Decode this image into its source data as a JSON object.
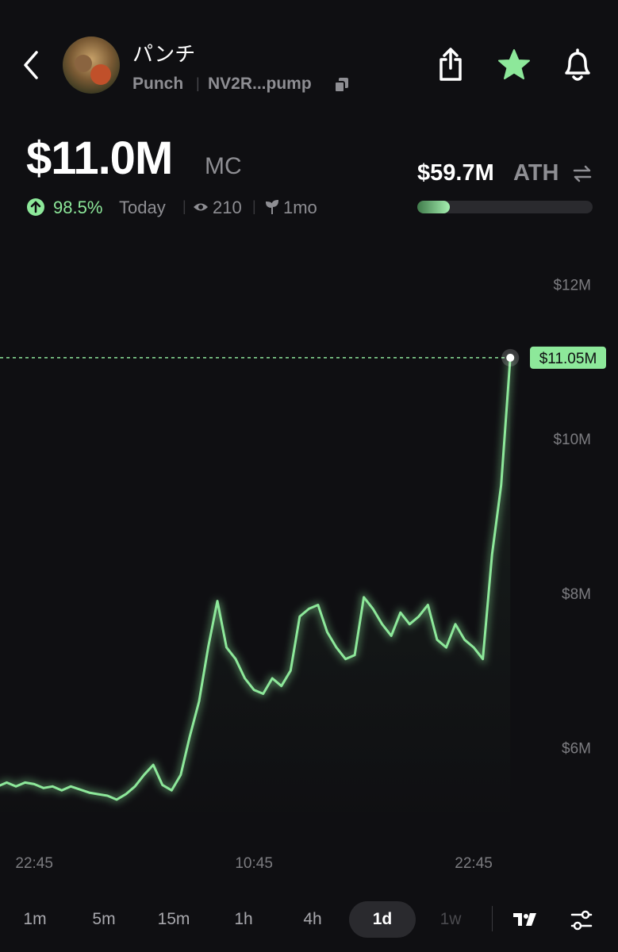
{
  "header": {
    "title": "パンチ",
    "symbol": "Punch",
    "address": "NV2R...pump"
  },
  "market": {
    "cap": "$11.0M",
    "cap_label": "MC",
    "change": "98.5%",
    "change_label": "Today",
    "views": "210",
    "age": "1mo",
    "ath": "$59.7M",
    "ath_label": "ATH"
  },
  "chart_data": {
    "type": "line",
    "color": "#8de89a",
    "categories": [
      null,
      null,
      null,
      null,
      "22:45",
      null,
      null,
      null,
      null,
      null,
      null,
      null,
      null,
      null,
      null,
      null,
      null,
      null,
      null,
      null,
      null,
      null,
      null,
      null,
      null,
      null,
      null,
      null,
      "10:45",
      null,
      null,
      null,
      null,
      null,
      null,
      null,
      null,
      null,
      null,
      null,
      null,
      null,
      null,
      null,
      null,
      null,
      null,
      null,
      null,
      null,
      null,
      null,
      "22:45",
      null,
      null,
      null,
      null
    ],
    "values": [
      5500000,
      5550000,
      5500000,
      5550000,
      5530000,
      5480000,
      5500000,
      5450000,
      5500000,
      5460000,
      5420000,
      5400000,
      5380000,
      5330000,
      5400000,
      5500000,
      5650000,
      5780000,
      5520000,
      5450000,
      5650000,
      6150000,
      6600000,
      7300000,
      7900000,
      7300000,
      7150000,
      6900000,
      6750000,
      6700000,
      6900000,
      6800000,
      7000000,
      7700000,
      7800000,
      7850000,
      7500000,
      7300000,
      7150000,
      7200000,
      7950000,
      7800000,
      7600000,
      7450000,
      7750000,
      7600000,
      7700000,
      7850000,
      7400000,
      7300000,
      7600000,
      7400000,
      7300000,
      7150000,
      8500000,
      9400000,
      11050000
    ],
    "ylim": [
      5000000,
      12600000
    ],
    "yticks": [
      {
        "value": 6000000,
        "label": "$6M"
      },
      {
        "value": 8000000,
        "label": "$8M"
      },
      {
        "value": 10000000,
        "label": "$10M"
      },
      {
        "value": 12000000,
        "label": "$12M"
      }
    ],
    "price_line": {
      "value": 11050000,
      "label": "$11.05M"
    }
  },
  "timeframes": [
    "1m",
    "5m",
    "15m",
    "1h",
    "4h",
    "1d",
    "1w"
  ],
  "selected_timeframe": "1d"
}
